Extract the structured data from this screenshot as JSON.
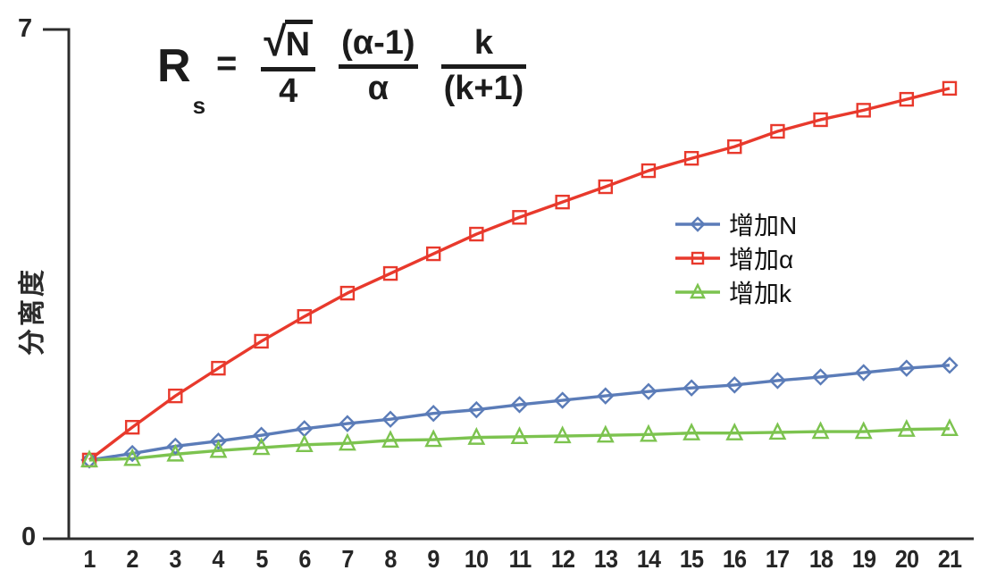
{
  "formula": {
    "lhs_base": "R",
    "lhs_sub": "s",
    "equals": "=",
    "sqrt_sign": "√",
    "frac1_num": "N",
    "frac1_den": "4",
    "frac2_num": "(α-1)",
    "frac2_den": "α",
    "frac3_num": "k",
    "frac3_den": "(k+1)"
  },
  "axes": {
    "y_max_label": "7",
    "y_min_label": "0",
    "y_title": "分离度"
  },
  "legend": {
    "items": [
      {
        "label": "增加N",
        "marker": "diamond",
        "color": "#5b7cb8"
      },
      {
        "label": "增加α",
        "marker": "square",
        "color": "#e8392c"
      },
      {
        "label": "增加k",
        "marker": "triangle",
        "color": "#7cc34f"
      }
    ]
  },
  "chart_data": {
    "type": "line",
    "x": [
      1,
      2,
      3,
      4,
      5,
      6,
      7,
      8,
      9,
      10,
      11,
      12,
      13,
      14,
      15,
      16,
      17,
      18,
      19,
      20,
      21
    ],
    "x_tick_labels": [
      "1",
      "2",
      "3",
      "4",
      "5",
      "6",
      "7",
      "8",
      "9",
      "10",
      "11",
      "12",
      "13",
      "14",
      "15",
      "16",
      "17",
      "18",
      "19",
      "20",
      "21"
    ],
    "series": [
      {
        "name": "增加N",
        "marker": "diamond",
        "color": "#5b7cb8",
        "values": [
          1.08,
          1.17,
          1.27,
          1.34,
          1.42,
          1.51,
          1.58,
          1.64,
          1.72,
          1.77,
          1.84,
          1.9,
          1.96,
          2.02,
          2.07,
          2.11,
          2.17,
          2.22,
          2.28,
          2.34,
          2.38
        ]
      },
      {
        "name": "增加α",
        "marker": "square",
        "color": "#e8392c",
        "values": [
          1.08,
          1.53,
          1.96,
          2.34,
          2.71,
          3.05,
          3.37,
          3.64,
          3.91,
          4.18,
          4.41,
          4.62,
          4.83,
          5.05,
          5.22,
          5.38,
          5.59,
          5.75,
          5.88,
          6.03,
          6.18
        ]
      },
      {
        "name": "增加k",
        "marker": "triangle",
        "color": "#7cc34f",
        "values": [
          1.08,
          1.1,
          1.16,
          1.21,
          1.25,
          1.29,
          1.31,
          1.35,
          1.36,
          1.39,
          1.4,
          1.41,
          1.42,
          1.43,
          1.45,
          1.45,
          1.46,
          1.47,
          1.47,
          1.5,
          1.51
        ]
      }
    ],
    "title": "",
    "xlabel": "",
    "ylabel": "分离度",
    "ylim": [
      0,
      7
    ],
    "grid": false,
    "legend_position": "center-right"
  }
}
